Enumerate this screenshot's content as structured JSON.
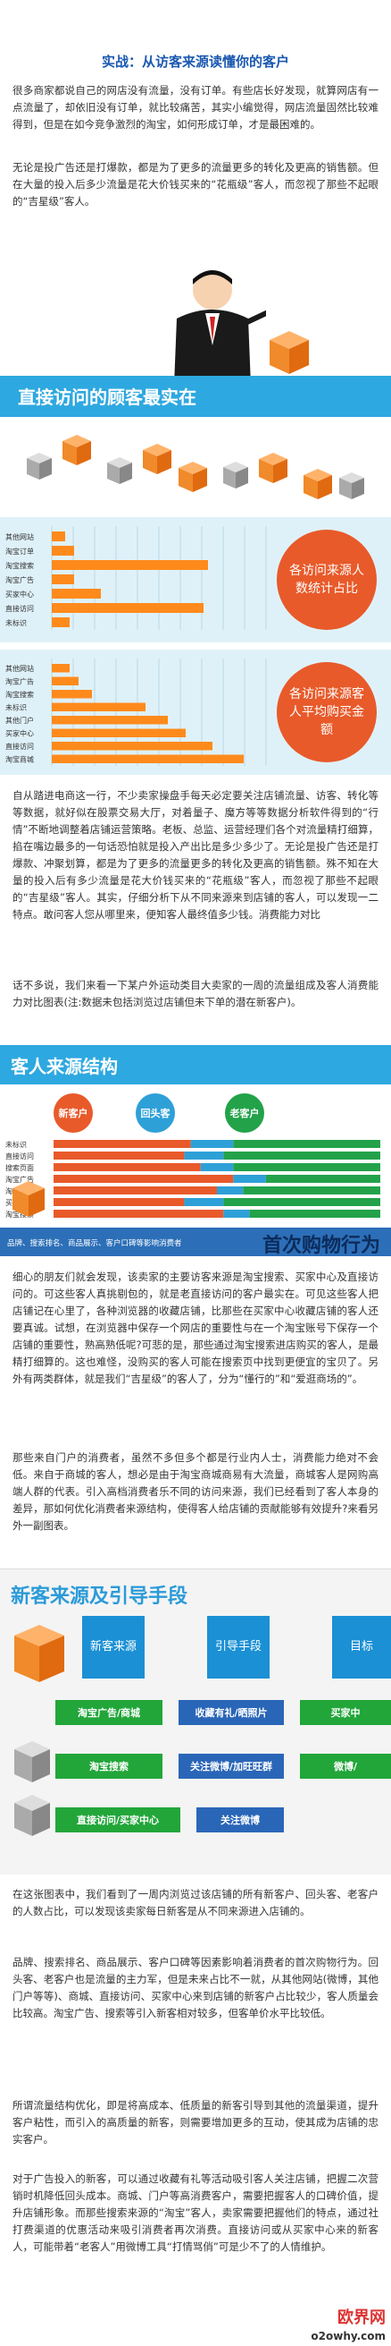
{
  "article": {
    "title": "实战：从访客来源读懂你的客户",
    "p1": "很多商家都说自己的网店没有流量，没有订单。有些店长好发现，就算网店有一点流量了，却依旧没有订单，就比较痛苦，其实小编觉得，网店流量固然比较难得到，但是在如今竞争激烈的淘宝，如何形成订单，才是最困难的。",
    "p2": "无论是投广告还是打爆款，都是为了更多的流量更多的转化及更高的销售额。但在大量的投入后多少流量是花大价钱买来的“花瓶级”客人，而忽视了那些不起眼的“吉星级”客人。",
    "p3": "自从踏进电商这一行，不少卖家操盘手每天必定要关注店铺流量、访客、转化等等数据，就好似在股票交易大厅，对着量子、魔方等等数据分析软件得到的“行情”不断地调整着店铺运营策略。老板、总监、运营经理们各个对流量精打细算，掐在嘴边最多的一句话恐怕就是投入产出比是多少多少了。无论是投广告还是打爆款、冲聚划算，都是为了更多的流量更多的转化及更高的销售额。殊不知在大量的投入后有多少流量是花大价钱买来的“花瓶级”客人，而忽视了那些不起眼的“吉星级”客人。其实，仔细分析下从不同来源来到店铺的客人，可以发现一二特点。敢问客人您从哪里来，便知客人最终值多少钱。消费能力对比",
    "p4": "话不多说，我们来看一下某户外运动类目大卖家的一周的流量组成及客人消费能力对比图表(注:数据未包括浏览过店铺但未下单的潜在新客户)。",
    "p5": "细心的朋友们就会发现，该卖家的主要访客来源是淘宝搜索、买家中心及直接访问的。可这些客人真挑剔包的，就是老直接访问的客户最实在。可见这些客人把店铺记在心里了，各种浏览器的收藏店铺，比那些在买家中心收藏店铺的客人还要真诚。试想，在浏览器中保存一个网店的重要性与在一个淘宝账号下保存一个店铺的重要性，熟高熟低呢?可悲的是，那些通过淘宝搜索进店购买的客人，是最精打细算的。这也难怪，没购买的客人可能在搜索页中找到更便宜的宝贝了。另外有两类群体，就是我们“吉星级”的客人了，分为“懂行的”和“爱逛商场的”。",
    "p6": "那些来自门户的消费者，虽然不多但多个都是行业内人士，消费能力绝对不会低。来自于商城的客人，想必是由于淘宝商城商易有大流量，商城客人是网购高端人群的代表。引入高档消费者乐不同的访问来源，我们已经看到了客人本身的差异，那如何优化消费者来源结构，使得客人给店铺的贡献能够有效提升?来看另外一副图表。",
    "p7": "在这张图表中，我们看到了一周内浏览过该店铺的所有新客户、回头客、老客户的人数占比，可以发现该卖家每日新客是从不同来源进入店铺的。",
    "p8": "品牌、搜索排名、商品展示、客户口碑等因素影响着消费者的首次购物行为。回头客、老客户也是流量的主力军，但是未来占比不一就，从其他网站(微博，其他门户等等)、商城、直接访问、买家中心来到店铺的新客户占比较少，客人质量会比较高。淘宝广告、搜索等引入新客相对较多，但客单价水平比较低。",
    "p9": "所谓流量结构优化，即是将高成本、低质量的新客引导到其他的流量渠道，提升客户粘性，而引入的高质量的新客，则需要增加更多的互动，使其成为店铺的忠实客户。",
    "p10": "对于广告投入的新客，可以通过收藏有礼等活动吸引客人关注店铺，把握二次营销时机降低回头成本。商城、门户等高消费客户，需要把握客人的口碑价值，提升店铺形象。而那些搜索来源的“淘宝”客人，卖家需要把握他们的特点，通过社打费渠道的优惠活动来吸引消费者再次消费。直接访问或从买家中心来的新客人，可能带着“老客人”用微博工具“打情骂俏”可是少不了的人情维护。"
  },
  "infographic1": {
    "headline": "直接访问的顾客最实在",
    "bubble_top": "各访问来源人数统计占比",
    "bubble_bottom": "各访问来源客人平均购买金额",
    "categories": [
      "其他网站",
      "淘宝订单",
      "淘宝搜索",
      "淘宝广告",
      "买家中心",
      "直接访问",
      "未标识"
    ],
    "categories_b": [
      "其他网站",
      "淘宝广告",
      "淘宝搜索",
      "未标识",
      "其他门户",
      "买家中心",
      "直接访问",
      "淘宝商城"
    ]
  },
  "chart_data": [
    {
      "type": "bar",
      "title": "各访问来源人数统计占比",
      "categories": [
        "其他网站",
        "淘宝订单",
        "淘宝搜索",
        "淘宝广告",
        "买家中心",
        "直接访问",
        "未标识"
      ],
      "values": [
        0.3,
        0.5,
        3.5,
        0.5,
        1.1,
        3.4,
        0.4
      ],
      "grid": true
    },
    {
      "type": "bar",
      "title": "各访问来源客人平均购买金额",
      "categories": [
        "其他网站",
        "淘宝广告",
        "淘宝搜索",
        "未标识",
        "其他门户",
        "买家中心",
        "直接访问",
        "淘宝商城"
      ],
      "values": [
        0.4,
        0.6,
        0.9,
        2.1,
        2.6,
        3.0,
        3.6,
        4.3
      ],
      "grid": true
    },
    {
      "type": "bar",
      "title": "客人来源结构",
      "legend": [
        "新客户",
        "回头客",
        "老客户"
      ],
      "categories": [
        "未标识",
        "直接访问",
        "搜索页面",
        "淘宝广告",
        "淘宝商城",
        "买家中心",
        "淘宝搜索"
      ],
      "series": [
        {
          "name": "新客户",
          "values": [
            0.42,
            0.4,
            0.45,
            0.55,
            0.5,
            0.4,
            0.52
          ]
        },
        {
          "name": "回头客",
          "values": [
            0.13,
            0.12,
            0.1,
            0.1,
            0.08,
            0.12,
            0.08
          ]
        },
        {
          "name": "老客户",
          "values": [
            0.45,
            0.48,
            0.45,
            0.35,
            0.42,
            0.48,
            0.4
          ]
        }
      ]
    }
  ],
  "infographic2": {
    "headline": "客人来源结构",
    "tag_new": "新客户",
    "tag_return": "回头客",
    "tag_old": "老客户",
    "footer_small": "品牌、搜索排名、商品展示、客户口碑等影响消费者",
    "footer_big": "首次购物行为",
    "colors": {
      "new": "#e85a2a",
      "return": "#2ea0d8",
      "old": "#23a24a"
    }
  },
  "infographic3": {
    "headline": "新客来源及引导手段",
    "col1": "新客来源",
    "col2": "引导手段",
    "col3": "目标",
    "rows": [
      {
        "source": "淘宝广告/商城",
        "guide": "收藏有礼/晒照片",
        "target": "买家中"
      },
      {
        "source": "淘宝搜索",
        "guide": "关注微博/加旺旺群",
        "target": "微博/"
      },
      {
        "source": "直接访问/买家中心",
        "guide": "关注微博",
        "target": ""
      }
    ]
  },
  "watermark": {
    "main": "欧界网",
    "sub": "o2owhy.com"
  }
}
